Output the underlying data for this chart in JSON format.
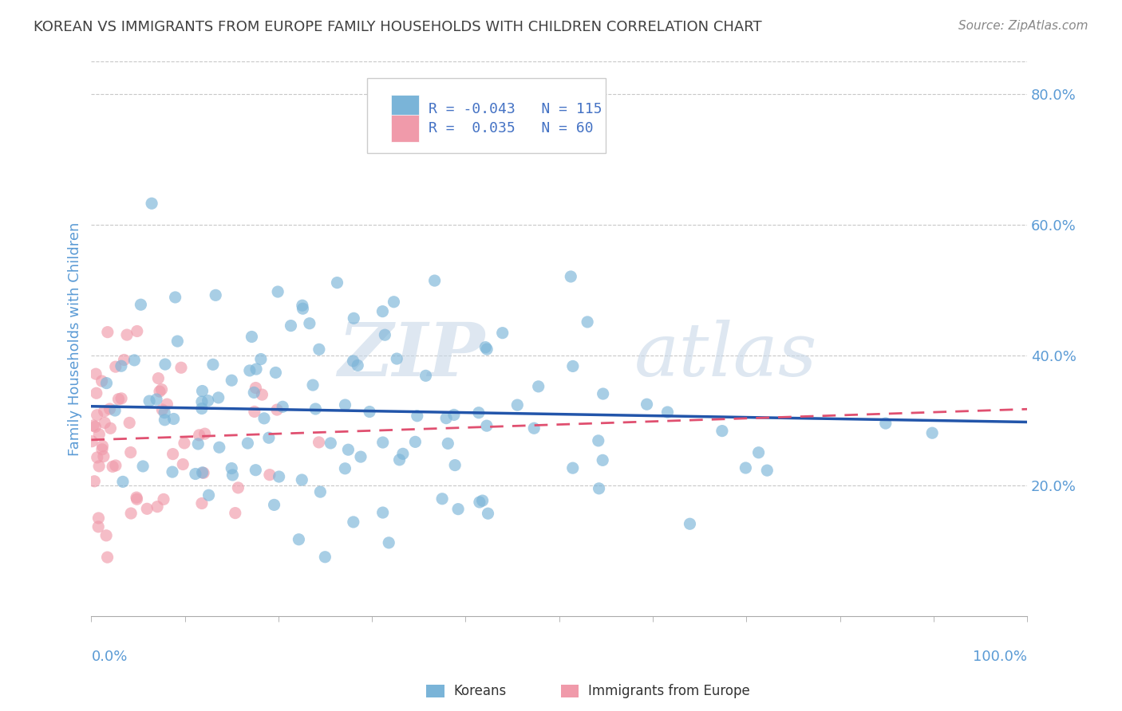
{
  "title": "KOREAN VS IMMIGRANTS FROM EUROPE FAMILY HOUSEHOLDS WITH CHILDREN CORRELATION CHART",
  "source": "Source: ZipAtlas.com",
  "ylabel": "Family Households with Children",
  "xlim": [
    0.0,
    1.0
  ],
  "ylim": [
    0.0,
    0.85
  ],
  "ytick_values": [
    0.2,
    0.4,
    0.6,
    0.8
  ],
  "watermark_zip": "ZIP",
  "watermark_atlas": "atlas",
  "korean_color": "#7ab4d8",
  "europe_color": "#f09aaa",
  "korean_line_color": "#2255aa",
  "europe_line_color": "#e05070",
  "background_color": "#ffffff",
  "grid_color": "#c8c8c8",
  "title_color": "#404040",
  "axis_label_color": "#5b9bd5",
  "tick_label_color": "#5b9bd5",
  "source_color": "#888888",
  "legend_box_color": "#e8e8e8",
  "legend_text_color": "#4472c4",
  "R_korean": -0.043,
  "N_korean": 115,
  "R_europe": 0.035,
  "N_europe": 60,
  "seed": 42
}
